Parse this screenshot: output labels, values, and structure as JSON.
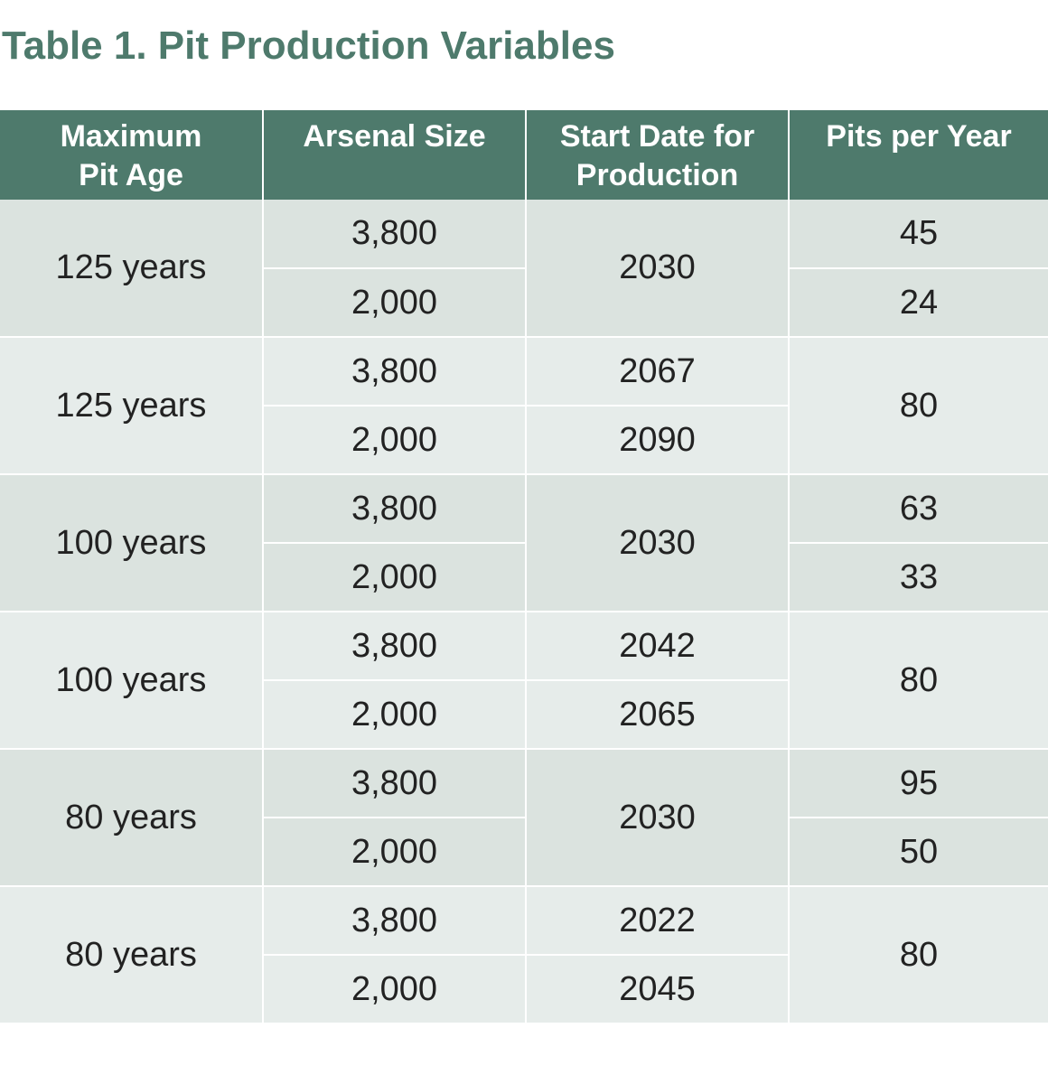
{
  "title": "Table 1. Pit Production Variables",
  "headers": [
    "Maximum\nPit Age",
    "Arsenal Size",
    "Start Date for\nProduction",
    "Pits per Year"
  ],
  "groups": [
    {
      "age": "125 years",
      "rows": [
        {
          "arsenal": "3,800",
          "start": "2030",
          "pits": "45"
        },
        {
          "arsenal": "2,000",
          "start": "2030",
          "pits": "24"
        }
      ],
      "start_merged": true,
      "pits_merged": false
    },
    {
      "age": "125 years",
      "rows": [
        {
          "arsenal": "3,800",
          "start": "2067",
          "pits": "80"
        },
        {
          "arsenal": "2,000",
          "start": "2090",
          "pits": "80"
        }
      ],
      "start_merged": false,
      "pits_merged": true
    },
    {
      "age": "100 years",
      "rows": [
        {
          "arsenal": "3,800",
          "start": "2030",
          "pits": "63"
        },
        {
          "arsenal": "2,000",
          "start": "2030",
          "pits": "33"
        }
      ],
      "start_merged": true,
      "pits_merged": false
    },
    {
      "age": "100 years",
      "rows": [
        {
          "arsenal": "3,800",
          "start": "2042",
          "pits": "80"
        },
        {
          "arsenal": "2,000",
          "start": "2065",
          "pits": "80"
        }
      ],
      "start_merged": false,
      "pits_merged": true
    },
    {
      "age": "80 years",
      "rows": [
        {
          "arsenal": "3,800",
          "start": "2030",
          "pits": "95"
        },
        {
          "arsenal": "2,000",
          "start": "2030",
          "pits": "50"
        }
      ],
      "start_merged": true,
      "pits_merged": false
    },
    {
      "age": "80 years",
      "rows": [
        {
          "arsenal": "3,800",
          "start": "2022",
          "pits": "80"
        },
        {
          "arsenal": "2,000",
          "start": "2045",
          "pits": "80"
        }
      ],
      "start_merged": false,
      "pits_merged": true
    }
  ],
  "colors": {
    "header_bg": "#4e7a6c",
    "title": "#4e7a6c",
    "row_a": "#dbe3df",
    "row_b": "#e6ecea"
  }
}
